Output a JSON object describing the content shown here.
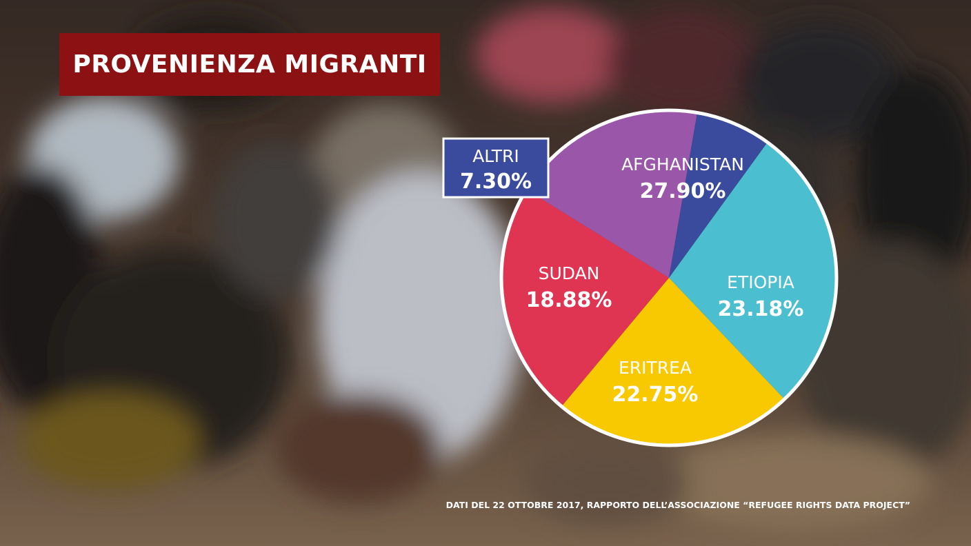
{
  "title": "PROVENIENZA MIGRANTI",
  "source_note": "DATI DEL 22 OTTOBRE 2017, RAPPORTO DELL’ASSOCIAZIONE “REFUGEE RIGHTS DATA PROJECT”",
  "chart_data": {
    "type": "pie",
    "title": "PROVENIENZA MIGRANTI",
    "slices": [
      {
        "name": "AFGHANISTAN",
        "value": 27.9,
        "label": "27.90%",
        "color": "#4bbfcf"
      },
      {
        "name": "ETIOPIA",
        "value": 23.18,
        "label": "23.18%",
        "color": "#f8c800"
      },
      {
        "name": "ERITREA",
        "value": 22.75,
        "label": "22.75%",
        "color": "#e03552"
      },
      {
        "name": "SUDAN",
        "value": 18.88,
        "label": "18.88%",
        "color": "#9a56a8"
      },
      {
        "name": "ALTRI",
        "value": 7.3,
        "label": "7.30%",
        "color": "#3a4a9c"
      }
    ]
  },
  "colors": {
    "title_banner": "#8b1113",
    "altri_box": "#3a4a9c",
    "pie_border": "#ffffff"
  }
}
